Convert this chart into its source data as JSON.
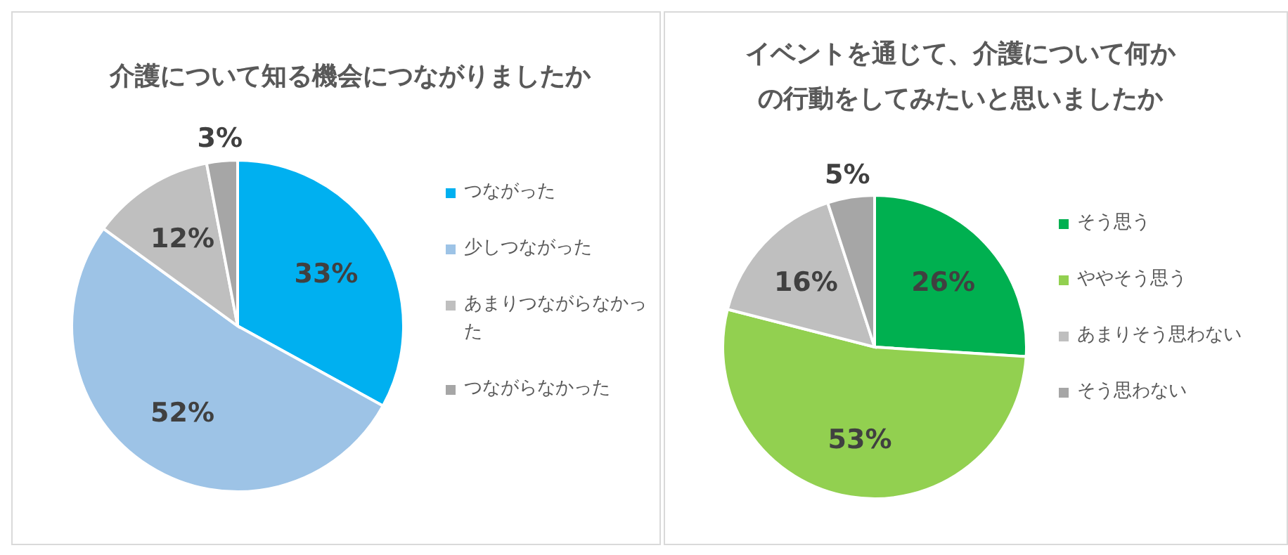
{
  "chart_data": [
    {
      "type": "pie",
      "title": "介護について知る機会につながりましたか",
      "categories": [
        "つながった",
        "少しつながった",
        "あまりつながらなかった",
        "つながらなかった"
      ],
      "values": [
        33,
        52,
        12,
        3
      ],
      "colors": [
        "#00b0f0",
        "#9dc3e6",
        "#bfbfbf",
        "#a6a6a6"
      ],
      "value_labels": [
        "33%",
        "52%",
        "12%",
        "3%"
      ],
      "legend": "right"
    },
    {
      "type": "pie",
      "title": "イベントを通じて、介護について何かの行動をしてみたいと思いましたか",
      "categories": [
        "そう思う",
        "ややそう思う",
        "あまりそう思わない",
        "そう思わない"
      ],
      "values": [
        26,
        53,
        16,
        5
      ],
      "colors": [
        "#00b050",
        "#92d050",
        "#bfbfbf",
        "#a6a6a6"
      ],
      "value_labels": [
        "26%",
        "53%",
        "16%",
        "5%"
      ],
      "legend": "right"
    }
  ]
}
